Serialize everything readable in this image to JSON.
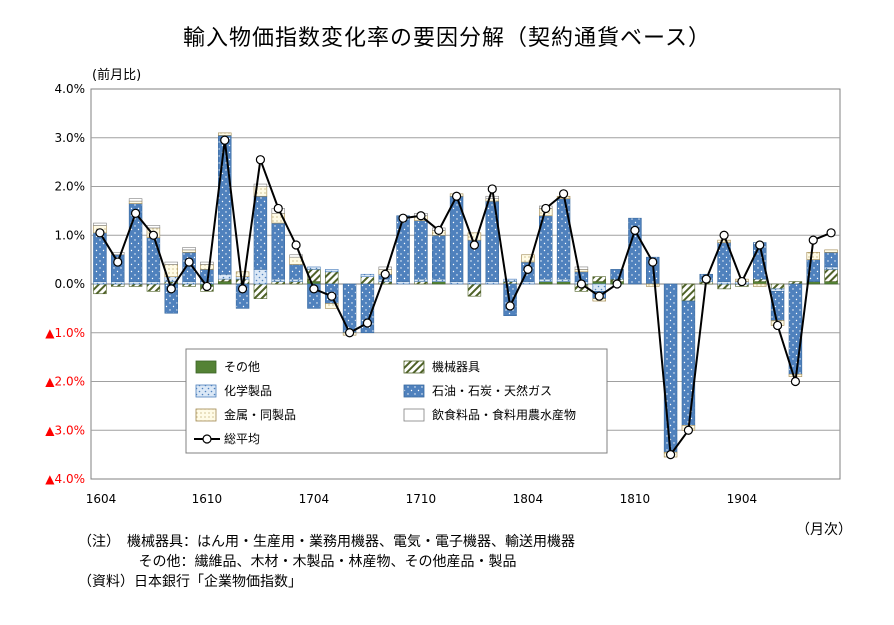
{
  "title": "輸入物価指数変化率の要因分解（契約通貨ベース）",
  "unit_label": "(前月比)",
  "month_label": "（月次）",
  "notes": [
    "（注）　機械器具：はん用・生産用・業務用機器、電気・電子機器、輸送用機器",
    "　　　　 その他：繊維品、木材・木製品・林産物、その他産品・製品",
    "（資料）日本銀行「企業物価指数」"
  ],
  "colors": {
    "oil": "#4f81bd",
    "chem": "#dbe8f6",
    "machinery": "#ffffff",
    "other": "#548235",
    "metal": "#fffbe6",
    "food": "#ffffff",
    "negative_tick": "#ff0000",
    "grid": "#a0a0a0",
    "total_line": "#000000"
  },
  "chart_data": {
    "type": "bar",
    "stacked": true,
    "title": "輸入物価指数変化率の要因分解（契約通貨ベース）",
    "ylabel": "(前月比)",
    "xlabel": "（月次）",
    "ylim": [
      -4.0,
      4.0
    ],
    "yticks": [
      "4.0%",
      "3.0%",
      "2.0%",
      "1.0%",
      "0.0%",
      "▲1.0%",
      "▲2.0%",
      "▲3.0%",
      "▲4.0%"
    ],
    "ytick_values": [
      4,
      3,
      2,
      1,
      0,
      -1,
      -2,
      -3,
      -4
    ],
    "xticks": [
      "1604",
      "1610",
      "1704",
      "1710",
      "1804",
      "1810",
      "1904"
    ],
    "xtick_indices": [
      0,
      6,
      12,
      18,
      24,
      30,
      36
    ],
    "x": [
      "1604",
      "1605",
      "1606",
      "1607",
      "1608",
      "1609",
      "1610",
      "1611",
      "1612",
      "1701",
      "1702",
      "1703",
      "1704",
      "1705",
      "1706",
      "1707",
      "1708",
      "1709",
      "1710",
      "1711",
      "1712",
      "1801",
      "1802",
      "1803",
      "1804",
      "1805",
      "1806",
      "1807",
      "1808",
      "1809",
      "1810",
      "1811",
      "1812",
      "1901",
      "1902",
      "1903",
      "1904",
      "1905",
      "1906",
      "1907",
      "1908",
      "1909"
    ],
    "legend_position": "bottom-left (inside)",
    "series": [
      {
        "key": "other",
        "name": "その他",
        "values": [
          0.0,
          0.0,
          0.0,
          0.0,
          0.0,
          0.0,
          -0.05,
          0.05,
          0.0,
          0.0,
          0.0,
          0.0,
          0.05,
          0.0,
          0.0,
          0.0,
          0.0,
          0.0,
          0.0,
          0.05,
          0.0,
          0.0,
          0.0,
          0.0,
          0.0,
          0.05,
          0.05,
          0.0,
          0.05,
          0.05,
          0.0,
          0.0,
          0.0,
          0.0,
          0.0,
          0.0,
          0.0,
          0.05,
          0.0,
          0.0,
          0.05,
          0.05
        ]
      },
      {
        "key": "machinery",
        "name": "機械器具",
        "values": [
          -0.2,
          -0.05,
          -0.05,
          -0.15,
          0.05,
          -0.05,
          -0.1,
          0.05,
          0.1,
          -0.3,
          0.05,
          0.05,
          0.25,
          0.25,
          0.0,
          0.15,
          0.05,
          0.0,
          0.05,
          0.0,
          0.0,
          -0.25,
          0.0,
          0.05,
          0.0,
          0.0,
          0.0,
          -0.15,
          0.1,
          0.05,
          0.0,
          0.0,
          0.0,
          -0.35,
          0.05,
          -0.1,
          -0.05,
          0.05,
          -0.1,
          0.05,
          0.0,
          0.25
        ]
      },
      {
        "key": "chem",
        "name": "化学製品",
        "values": [
          0.05,
          0.05,
          0.05,
          0.05,
          0.1,
          0.05,
          0.05,
          0.1,
          0.05,
          0.3,
          0.05,
          0.05,
          0.05,
          0.05,
          0.0,
          0.05,
          0.05,
          0.05,
          0.05,
          0.05,
          0.05,
          0.05,
          0.05,
          0.05,
          0.05,
          0.05,
          0.05,
          0.05,
          -0.15,
          0.0,
          0.0,
          0.0,
          0.0,
          0.0,
          0.05,
          0.05,
          0.05,
          0.0,
          -0.05,
          0.0,
          0.0,
          0.05
        ]
      },
      {
        "key": "oil",
        "name": "石油・石炭・天然ガス",
        "values": [
          1.0,
          0.55,
          1.6,
          0.9,
          -0.6,
          0.6,
          0.25,
          2.85,
          -0.5,
          1.5,
          1.15,
          0.3,
          -0.5,
          -0.4,
          -1.0,
          -1.0,
          0.1,
          1.35,
          1.2,
          0.9,
          1.75,
          0.85,
          1.65,
          -0.65,
          0.4,
          1.3,
          1.65,
          0.2,
          -0.15,
          0.2,
          1.35,
          0.55,
          -3.45,
          -2.55,
          0.1,
          0.8,
          0.0,
          0.75,
          -0.6,
          -1.85,
          0.45,
          0.3
        ]
      },
      {
        "key": "metal",
        "name": "金属・同製品",
        "values": [
          0.15,
          0.0,
          0.05,
          0.2,
          0.25,
          0.05,
          0.1,
          0.05,
          0.1,
          0.2,
          0.2,
          0.15,
          0.0,
          -0.1,
          -0.05,
          0.0,
          0.1,
          0.0,
          0.1,
          0.1,
          0.05,
          0.15,
          0.05,
          0.0,
          0.15,
          0.15,
          0.05,
          0.05,
          -0.05,
          0.0,
          0.0,
          -0.05,
          -0.1,
          -0.1,
          0.0,
          0.05,
          0.05,
          -0.05,
          -0.1,
          -0.05,
          0.15,
          0.05
        ]
      },
      {
        "key": "food",
        "name": "飲食料品・食料用農水産物",
        "values": [
          0.05,
          0.05,
          0.05,
          0.05,
          0.05,
          0.05,
          0.05,
          0.0,
          0.0,
          0.05,
          0.1,
          0.05,
          0.0,
          0.0,
          0.0,
          0.0,
          0.05,
          0.0,
          0.05,
          0.05,
          0.0,
          0.0,
          0.05,
          0.0,
          0.0,
          0.05,
          0.0,
          0.05,
          0.0,
          0.0,
          0.0,
          0.0,
          0.0,
          0.0,
          0.0,
          0.0,
          0.0,
          0.0,
          0.0,
          0.0,
          0.0,
          0.0
        ]
      },
      {
        "key": "total",
        "name": "総平均",
        "type": "line",
        "values": [
          1.05,
          0.45,
          1.45,
          1.0,
          -0.1,
          0.45,
          -0.05,
          2.95,
          -0.1,
          2.55,
          1.55,
          0.8,
          -0.1,
          -0.25,
          -1.0,
          -0.8,
          0.2,
          1.35,
          1.4,
          1.1,
          1.8,
          0.8,
          1.95,
          -0.45,
          0.3,
          1.55,
          1.85,
          0.0,
          -0.25,
          0.0,
          1.1,
          0.45,
          -3.5,
          -3.0,
          0.1,
          1.0,
          0.05,
          0.8,
          -0.85,
          -2.0,
          0.9,
          1.05
        ]
      }
    ]
  }
}
